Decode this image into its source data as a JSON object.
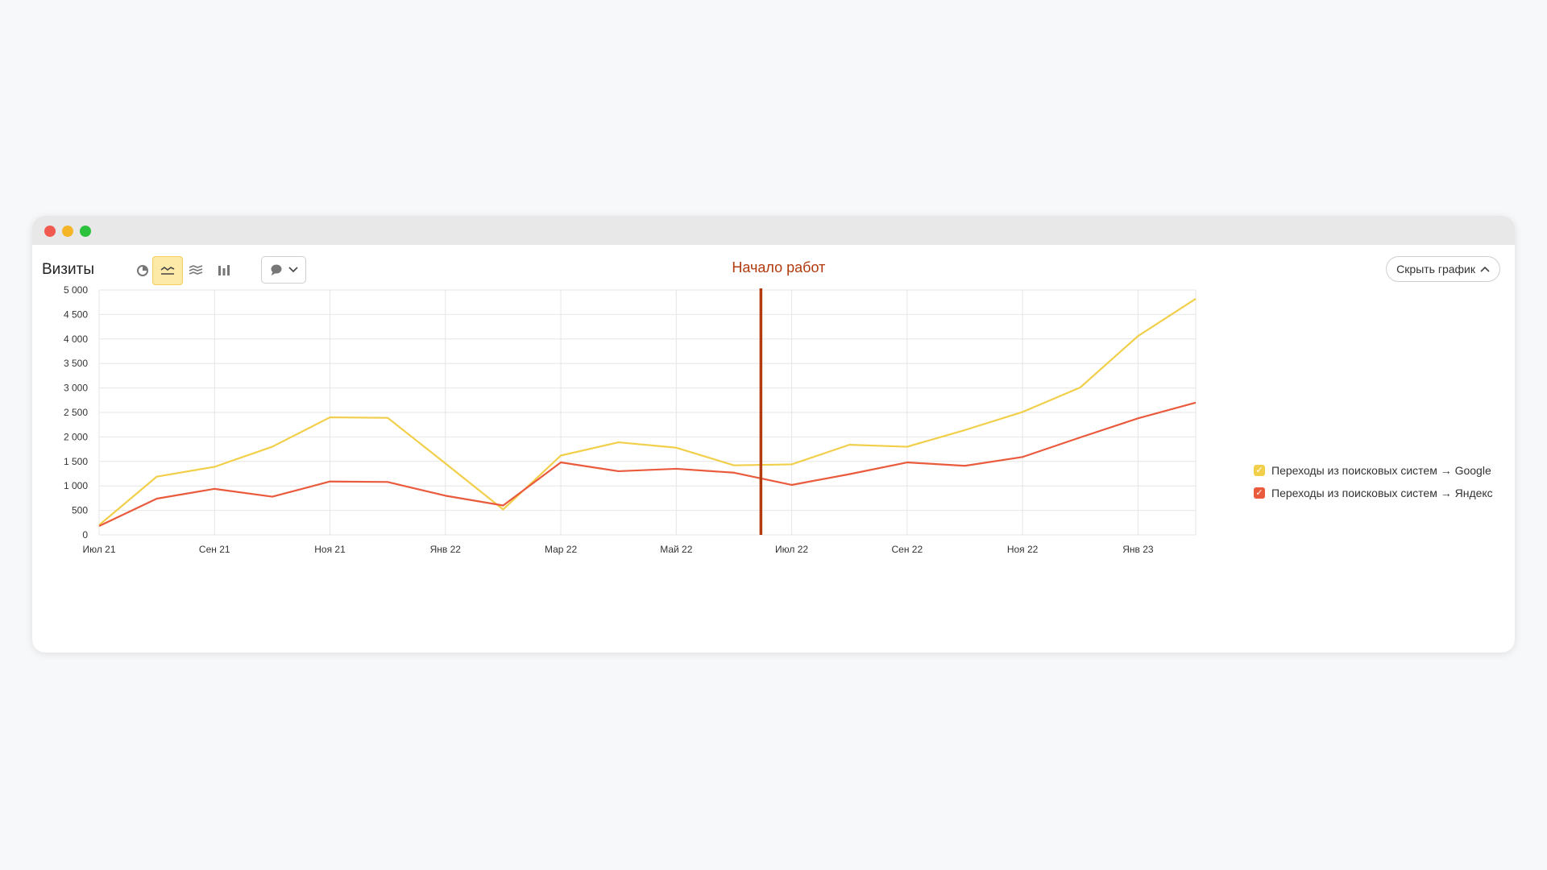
{
  "window": {
    "toolbar_title": "Визиты",
    "hide_chart_label": "Скрыть график",
    "icons": [
      "pie-chart-icon",
      "line-chart-icon",
      "stacked-area-icon",
      "bar-chart-icon",
      "comment-icon",
      "chevron-down-icon",
      "chevron-up-icon"
    ]
  },
  "colors": {
    "google": "#f2cf4a",
    "yandex": "#ea5a3d",
    "annotation": "#b23a0c",
    "grid": "#e6e6e6",
    "active_tool_bg": "#fde9a8"
  },
  "chart_data": {
    "type": "line",
    "title": "",
    "xlabel": "",
    "ylabel": "",
    "ylim": [
      0,
      5000
    ],
    "yticks": [
      0,
      500,
      1000,
      1500,
      2000,
      2500,
      3000,
      3500,
      4000,
      4500,
      5000
    ],
    "ytick_labels": [
      "0",
      "500",
      "1 000",
      "1 500",
      "2 000",
      "2 500",
      "3 000",
      "3 500",
      "4 000",
      "4 500",
      "5 000"
    ],
    "x": [
      "2021-07",
      "2021-08",
      "2021-09",
      "2021-10",
      "2021-11",
      "2021-12",
      "2022-01",
      "2022-02",
      "2022-03",
      "2022-04",
      "2022-05",
      "2022-06",
      "2022-07",
      "2022-08",
      "2022-09",
      "2022-10",
      "2022-11",
      "2022-12",
      "2023-01",
      "2023-02"
    ],
    "xtick_labels": [
      "Июл 21",
      "Сен 21",
      "Ноя 21",
      "Янв 22",
      "Мар 22",
      "Май 22",
      "Июл 22",
      "Сен 22",
      "Ноя 22",
      "Янв 23"
    ],
    "xtick_positions": [
      "2021-07",
      "2021-09",
      "2021-11",
      "2022-01",
      "2022-03",
      "2022-05",
      "2022-07",
      "2022-09",
      "2022-11",
      "2023-01"
    ],
    "series": [
      {
        "name": "Переходы из поисковых систем → Google",
        "color": "#f2cf4a",
        "values": [
          200,
          1190,
          1390,
          1800,
          2400,
          2390,
          1460,
          520,
          1620,
          1890,
          1780,
          1420,
          1440,
          1840,
          1800,
          2140,
          2510,
          3010,
          4060,
          4820
        ]
      },
      {
        "name": "Переходы из поисковых систем → Яндекс",
        "color": "#ea5a3d",
        "values": [
          180,
          740,
          940,
          780,
          1090,
          1080,
          800,
          600,
          1480,
          1300,
          1350,
          1270,
          1020,
          1240,
          1480,
          1410,
          1590,
          1990,
          2380,
          2700
        ]
      }
    ],
    "annotation": {
      "label": "Начало работ",
      "x": "2022-06-15"
    },
    "grid": true,
    "legend_position": "right"
  }
}
